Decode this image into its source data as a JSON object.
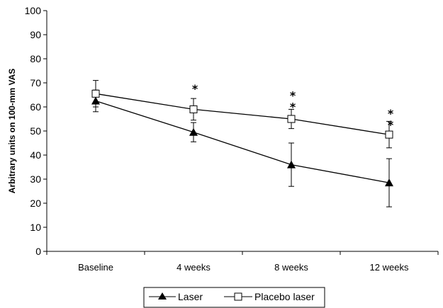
{
  "chart_data": {
    "type": "line",
    "categories": [
      "Baseline",
      "4 weeks",
      "8 weeks",
      "12 weeks"
    ],
    "ylabel": "Arbitrary units on 100-mm VAS",
    "xlabel": "",
    "ylim": [
      0,
      100
    ],
    "yticks": [
      0,
      10,
      20,
      30,
      40,
      50,
      60,
      70,
      80,
      90,
      100
    ],
    "grid": false,
    "legend_position": "bottom",
    "series": [
      {
        "name": "Laser",
        "marker": "filled-triangle",
        "color": "#000000",
        "values": [
          62.5,
          49.5,
          36,
          28.5
        ],
        "error": [
          4.5,
          4,
          9,
          10
        ]
      },
      {
        "name": "Placebo laser",
        "marker": "open-square",
        "color": "#000000",
        "values": [
          65.5,
          59,
          55,
          48.5
        ],
        "error": [
          5.5,
          4.5,
          4,
          5.5
        ]
      }
    ],
    "annotations": [
      {
        "category": "4 weeks",
        "y": 68.3,
        "text": "*"
      },
      {
        "category": "8 weeks",
        "y": 65.5,
        "text": "*"
      },
      {
        "category": "8 weeks",
        "y": 60.8,
        "text": "*"
      },
      {
        "category": "12 weeks",
        "y": 58.0,
        "text": "*"
      },
      {
        "category": "12 weeks",
        "y": 53.2,
        "text": "*"
      }
    ]
  }
}
